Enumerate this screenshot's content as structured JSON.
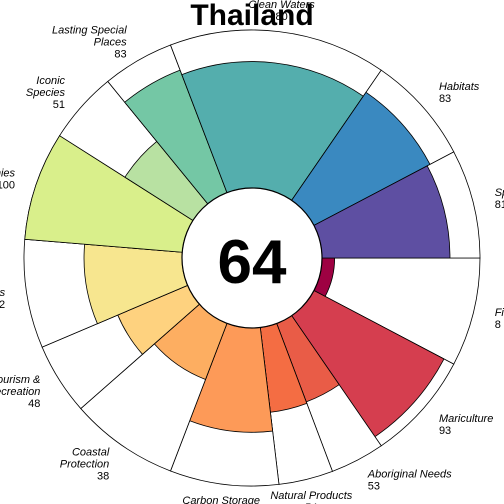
{
  "chart_data": {
    "type": "polar-bar",
    "title": "Thailand",
    "center_value": "64",
    "max": 100,
    "segments": [
      {
        "label_lines": [
          "Fisheries"
        ],
        "value": 8,
        "weight": 0.5,
        "color": "#9e0142"
      },
      {
        "label_lines": [
          "Mariculture"
        ],
        "value": 93,
        "weight": 0.5,
        "color": "#d53e4f"
      },
      {
        "label_lines": [
          "Aboriginal Needs"
        ],
        "value": 53,
        "weight": 0.25,
        "color": "#e95c47"
      },
      {
        "label_lines": [
          "Natural Products"
        ],
        "value": 54,
        "weight": 0.25,
        "color": "#f46d43"
      },
      {
        "label_lines": [
          "Carbon Storage"
        ],
        "value": 66,
        "weight": 0.5,
        "color": "#fd9a58"
      },
      {
        "label_lines": [
          "Coastal",
          "Protection"
        ],
        "value": 38,
        "weight": 0.5,
        "color": "#fdae61"
      },
      {
        "label_lines": [
          "Tourism &",
          "Recreation"
        ],
        "value": 48,
        "weight": 0.33,
        "color": "#fed27f"
      },
      {
        "label_lines": [
          "Livelihoods"
        ],
        "value": 62,
        "weight": 0.5,
        "color": "#f7e68f"
      },
      {
        "label_lines": [
          "Economies"
        ],
        "value": 100,
        "weight": 0.5,
        "color": "#d9ef8b"
      },
      {
        "label_lines": [
          "Iconic",
          "Species"
        ],
        "value": 51,
        "weight": 0.33,
        "color": "#b8e1a2"
      },
      {
        "label_lines": [
          "Lasting Special",
          "Places"
        ],
        "value": 83,
        "weight": 0.33,
        "color": "#74c7a5"
      },
      {
        "label_lines": [
          "Clean Waters"
        ],
        "value": 80,
        "weight": 1.0,
        "color": "#54aead"
      },
      {
        "label_lines": [
          "Habitats"
        ],
        "value": 83,
        "weight": 0.5,
        "color": "#3a89c0"
      },
      {
        "label_lines": [
          "Species"
        ],
        "value": 81,
        "weight": 0.5,
        "color": "#5e4fa2"
      }
    ]
  }
}
